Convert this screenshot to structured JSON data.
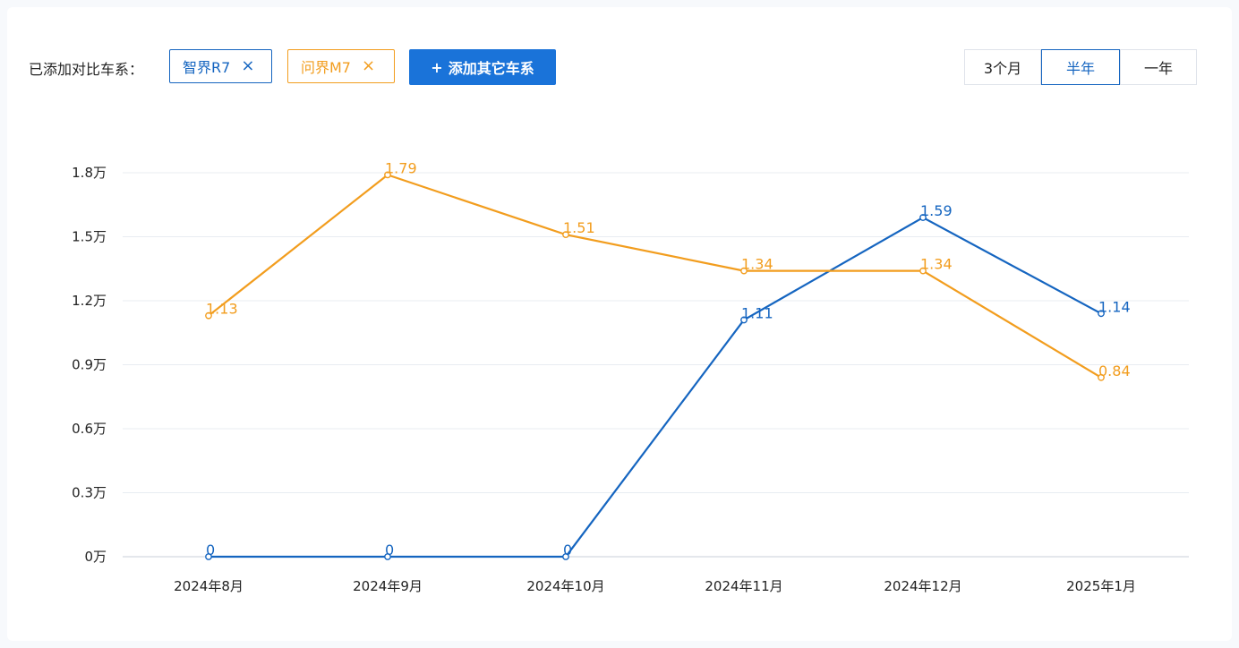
{
  "toolbar": {
    "added_label": "已添加对比车系：",
    "tags": [
      {
        "name": "智界R7",
        "color": "#1565c0",
        "remove_icon": "close-icon"
      },
      {
        "name": "问界M7",
        "color": "#f29d1e",
        "remove_icon": "close-icon"
      }
    ],
    "add_button": {
      "icon": "plus-icon",
      "label": "添加其它车系"
    },
    "ranges": [
      "3个月",
      "半年",
      "一年"
    ],
    "selected_range": "半年"
  },
  "chart_data": {
    "type": "line",
    "categories": [
      "2024年8月",
      "2024年9月",
      "2024年10月",
      "2024年11月",
      "2024年12月",
      "2025年1月"
    ],
    "y_ticks": [
      "0万",
      "0.3万",
      "0.6万",
      "0.9万",
      "1.2万",
      "1.5万",
      "1.8万"
    ],
    "ylim": [
      0,
      1.8
    ],
    "y_unit": "万",
    "grid": true,
    "series": [
      {
        "name": "智界R7",
        "color": "#1565c0",
        "values": [
          0,
          0,
          0,
          1.11,
          1.59,
          1.14
        ],
        "labels": [
          "0",
          "0",
          "0",
          "1.11",
          "1.59",
          "1.14"
        ]
      },
      {
        "name": "问界M7",
        "color": "#f29d1e",
        "values": [
          1.13,
          1.79,
          1.51,
          1.34,
          1.34,
          0.84
        ],
        "labels": [
          "1.13",
          "1.79",
          "1.51",
          "1.34",
          "1.34",
          "0.84"
        ]
      }
    ]
  }
}
